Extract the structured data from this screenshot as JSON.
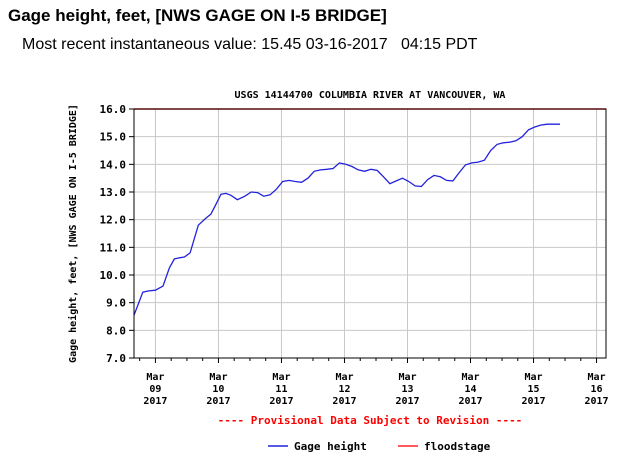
{
  "header": {
    "title": "Gage height, feet, [NWS GAGE ON I-5 BRIDGE]",
    "recent_label": "Most recent instantaneous value:",
    "recent_value": "15.45",
    "recent_date": "03-16-2017",
    "recent_time": "04:15 PDT"
  },
  "chart_data": {
    "type": "line",
    "title": "USGS 14144700 COLUMBIA RIVER AT VANCOUVER, WA",
    "ylabel": "Gage height, feet, [NWS GAGE ON I-5 BRIDGE]",
    "xlabel": "",
    "ylim": [
      7.0,
      16.0
    ],
    "yticks": [
      "7.0",
      "8.0",
      "9.0",
      "10.0",
      "11.0",
      "12.0",
      "13.0",
      "14.0",
      "15.0",
      "16.0"
    ],
    "xlim": [
      8.66,
      16.15
    ],
    "xticks": [
      {
        "x": 9,
        "month": "Mar",
        "day": "09",
        "year": "2017"
      },
      {
        "x": 10,
        "month": "Mar",
        "day": "10",
        "year": "2017"
      },
      {
        "x": 11,
        "month": "Mar",
        "day": "11",
        "year": "2017"
      },
      {
        "x": 12,
        "month": "Mar",
        "day": "12",
        "year": "2017"
      },
      {
        "x": 13,
        "month": "Mar",
        "day": "13",
        "year": "2017"
      },
      {
        "x": 14,
        "month": "Mar",
        "day": "14",
        "year": "2017"
      },
      {
        "x": 15,
        "month": "Mar",
        "day": "15",
        "year": "2017"
      },
      {
        "x": 16,
        "month": "Mar",
        "day": "16",
        "year": "2017"
      }
    ],
    "provisional_note": "---- Provisional Data Subject to Revision ----",
    "grid": true,
    "legend_position": "bottom",
    "series": [
      {
        "name": "Gage height",
        "color": "#2222dd",
        "x": [
          8.66,
          8.72,
          8.8,
          8.88,
          9.0,
          9.12,
          9.22,
          9.3,
          9.38,
          9.46,
          9.55,
          9.68,
          9.8,
          9.88,
          9.96,
          10.04,
          10.12,
          10.2,
          10.3,
          10.42,
          10.52,
          10.62,
          10.72,
          10.82,
          10.92,
          11.02,
          11.12,
          11.22,
          11.32,
          11.42,
          11.52,
          11.62,
          11.72,
          11.82,
          11.92,
          12.02,
          12.12,
          12.22,
          12.32,
          12.42,
          12.52,
          12.62,
          12.72,
          12.82,
          12.92,
          13.02,
          13.12,
          13.22,
          13.32,
          13.42,
          13.52,
          13.62,
          13.72,
          13.82,
          13.92,
          14.02,
          14.12,
          14.22,
          14.32,
          14.42,
          14.52,
          14.62,
          14.72,
          14.82,
          14.92,
          15.02,
          15.12,
          15.22,
          15.32,
          15.42
        ],
        "values": [
          8.55,
          8.9,
          9.38,
          9.42,
          9.45,
          9.6,
          10.25,
          10.58,
          10.62,
          10.65,
          10.8,
          11.8,
          12.05,
          12.2,
          12.55,
          12.92,
          12.95,
          12.88,
          12.72,
          12.85,
          13.0,
          12.98,
          12.85,
          12.9,
          13.1,
          13.38,
          13.42,
          13.38,
          13.35,
          13.5,
          13.75,
          13.8,
          13.82,
          13.85,
          14.05,
          14.0,
          13.92,
          13.8,
          13.75,
          13.82,
          13.78,
          13.55,
          13.3,
          13.4,
          13.5,
          13.38,
          13.22,
          13.2,
          13.45,
          13.6,
          13.55,
          13.42,
          13.4,
          13.7,
          13.98,
          14.05,
          14.08,
          14.15,
          14.5,
          14.72,
          14.78,
          14.8,
          14.85,
          15.0,
          15.25,
          15.35,
          15.42,
          15.45,
          15.45,
          15.45
        ]
      },
      {
        "name": "floodstage",
        "color": "#ff2222",
        "x": [
          8.66,
          16.15
        ],
        "values": [
          16.0,
          16.0
        ]
      }
    ]
  }
}
